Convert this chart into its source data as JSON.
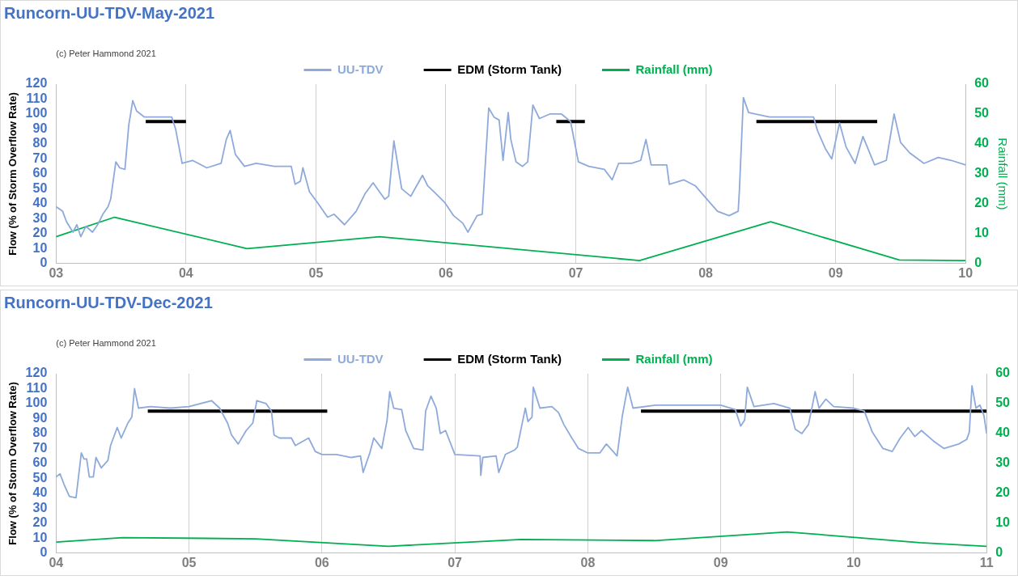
{
  "chart_data": [
    {
      "type": "line",
      "title": "Runcorn-UU-TDV-May-2021",
      "ylabel": "Flow (% of Storm Overflow Rate)",
      "y2label": "Rainfall (mm)",
      "annotations": [
        "(c) Peter Hammond 2021"
      ],
      "legend": "top",
      "grid": "x",
      "marker": "none",
      "line_style": "solid",
      "xlim": [
        3,
        10
      ],
      "xticks": [
        {
          "value": 3,
          "label": "03"
        },
        {
          "value": 4,
          "label": "04"
        },
        {
          "value": 5,
          "label": "05"
        },
        {
          "value": 6,
          "label": "06"
        },
        {
          "value": 7,
          "label": "07"
        },
        {
          "value": 8,
          "label": "08"
        },
        {
          "value": 9,
          "label": "09"
        },
        {
          "value": 10,
          "label": "10"
        }
      ],
      "ylim": [
        0,
        120
      ],
      "yticks": [
        0,
        10,
        20,
        30,
        40,
        50,
        60,
        70,
        80,
        90,
        100,
        110,
        120
      ],
      "y2lim": [
        0,
        60
      ],
      "y2ticks": [
        0,
        10,
        20,
        30,
        40,
        50,
        60
      ],
      "series": [
        {
          "name": "UU-TDV",
          "color": "#8eaadb",
          "x": [
            3.0,
            3.05,
            3.08,
            3.13,
            3.16,
            3.19,
            3.23,
            3.28,
            3.32,
            3.36,
            3.4,
            3.42,
            3.46,
            3.49,
            3.53,
            3.56,
            3.57,
            3.59,
            3.62,
            3.68,
            3.77,
            3.89,
            3.92,
            3.97,
            4.05,
            4.16,
            4.27,
            4.31,
            4.34,
            4.38,
            4.45,
            4.54,
            4.68,
            4.81,
            4.84,
            4.88,
            4.9,
            4.95,
            5.01,
            5.09,
            5.14,
            5.22,
            5.31,
            5.38,
            5.44,
            5.53,
            5.56,
            5.6,
            5.66,
            5.73,
            5.82,
            5.86,
            5.92,
            5.99,
            6.06,
            6.13,
            6.17,
            6.24,
            6.28,
            6.33,
            6.37,
            6.41,
            6.44,
            6.48,
            6.5,
            6.54,
            6.59,
            6.63,
            6.67,
            6.72,
            6.8,
            6.89,
            6.96,
            7.02,
            7.1,
            7.22,
            7.28,
            7.33,
            7.43,
            7.5,
            7.54,
            7.58,
            7.7,
            7.72,
            7.83,
            7.92,
            8.01,
            8.09,
            8.18,
            8.25,
            8.26,
            8.29,
            8.33,
            8.49,
            8.67,
            8.83,
            8.86,
            8.92,
            8.97,
            9.03,
            9.08,
            9.15,
            9.21,
            9.3,
            9.39,
            9.45,
            9.5,
            9.57,
            9.68,
            9.79,
            9.89,
            10.0
          ],
          "values": [
            38,
            35,
            28,
            21,
            26,
            18,
            25,
            21,
            26,
            33,
            38,
            43,
            68,
            64,
            63,
            93,
            98,
            109,
            102,
            98,
            98,
            98,
            90,
            67,
            69,
            64,
            67,
            83,
            89,
            73,
            65,
            67,
            65,
            65,
            53,
            55,
            64,
            48,
            41,
            31,
            33,
            26,
            35,
            47,
            54,
            43,
            45,
            82,
            50,
            45,
            59,
            52,
            47,
            41,
            32,
            27,
            21,
            32,
            33,
            104,
            98,
            96,
            69,
            101,
            83,
            68,
            65,
            68,
            106,
            97,
            100,
            100,
            95,
            68,
            65,
            63,
            56,
            67,
            67,
            69,
            83,
            66,
            66,
            53,
            56,
            52,
            43,
            35,
            32,
            35,
            50,
            111,
            101,
            98,
            98,
            98,
            89,
            77,
            70,
            94,
            78,
            67,
            85,
            66,
            69,
            100,
            81,
            74,
            67,
            71,
            69,
            66
          ]
        },
        {
          "name": "EDM (Storm Tank)",
          "color": "#000000",
          "x": [
            3.69,
            4.0,
            5.0,
            6.85,
            7.07,
            8.0,
            8.39,
            9.32
          ],
          "values": [
            95,
            95,
            null,
            95,
            95,
            null,
            95,
            95
          ]
        },
        {
          "name": "Rainfall (mm)",
          "color": "#00b050",
          "axis": "y2",
          "x": [
            3,
            3.45,
            4.47,
            5.49,
            7.49,
            8.5,
            9.49,
            10
          ],
          "values": [
            9,
            15.5,
            5,
            9,
            1,
            14,
            1.2,
            1
          ]
        }
      ]
    },
    {
      "type": "line",
      "title": "Runcorn-UU-TDV-Dec-2021",
      "ylabel": "Flow (% of Storm Overflow Rate)",
      "annotations": [
        "(c) Peter Hammond 2021"
      ],
      "legend": "top",
      "grid": "x",
      "marker": "none",
      "line_style": "solid",
      "xlim": [
        4,
        11
      ],
      "xticks": [
        {
          "value": 4,
          "label": "04"
        },
        {
          "value": 5,
          "label": "05"
        },
        {
          "value": 6,
          "label": "06"
        },
        {
          "value": 7,
          "label": "07"
        },
        {
          "value": 8,
          "label": "08"
        },
        {
          "value": 9,
          "label": "09"
        },
        {
          "value": 10,
          "label": "10"
        },
        {
          "value": 11,
          "label": "11"
        }
      ],
      "ylim": [
        0,
        120
      ],
      "yticks": [
        0,
        10,
        20,
        30,
        40,
        50,
        60,
        70,
        80,
        90,
        100,
        110,
        120
      ],
      "y2lim": [
        0,
        60
      ],
      "y2ticks": [
        0,
        10,
        20,
        30,
        40,
        50,
        60
      ],
      "series": [
        {
          "name": "UU-TDV",
          "color": "#8eaadb",
          "x": [
            4.0,
            4.03,
            4.06,
            4.1,
            4.15,
            4.19,
            4.21,
            4.23,
            4.25,
            4.28,
            4.3,
            4.34,
            4.39,
            4.41,
            4.46,
            4.49,
            4.54,
            4.57,
            4.59,
            4.62,
            4.71,
            4.86,
            5.0,
            5.17,
            5.23,
            5.29,
            5.32,
            5.37,
            5.43,
            5.48,
            5.51,
            5.58,
            5.62,
            5.64,
            5.68,
            5.77,
            5.8,
            5.9,
            5.95,
            6.0,
            6.11,
            6.22,
            6.29,
            6.31,
            6.36,
            6.39,
            6.45,
            6.49,
            6.51,
            6.54,
            6.6,
            6.63,
            6.69,
            6.76,
            6.78,
            6.82,
            6.86,
            6.89,
            6.93,
            7.0,
            7.19,
            7.195,
            7.21,
            7.31,
            7.33,
            7.38,
            7.45,
            7.47,
            7.53,
            7.55,
            7.58,
            7.59,
            7.64,
            7.73,
            7.78,
            7.82,
            7.88,
            7.93,
            8.0,
            8.09,
            8.14,
            8.22,
            8.26,
            8.3,
            8.34,
            8.51,
            8.74,
            9.0,
            9.11,
            9.15,
            9.18,
            9.2,
            9.25,
            9.4,
            9.52,
            9.56,
            9.61,
            9.66,
            9.69,
            9.71,
            9.74,
            9.79,
            9.85,
            10.0,
            10.08,
            10.14,
            10.22,
            10.29,
            10.35,
            10.41,
            10.46,
            10.51,
            10.6,
            10.68,
            10.79,
            10.85,
            10.87,
            10.89,
            10.92,
            10.95,
            10.98,
            11.0
          ],
          "values": [
            51,
            53,
            46,
            38,
            37,
            67,
            63,
            63,
            51,
            51,
            64,
            57,
            62,
            72,
            84,
            77,
            87,
            91,
            110,
            97,
            98,
            97,
            98,
            102,
            97,
            87,
            79,
            73,
            82,
            87,
            102,
            100,
            95,
            79,
            77,
            77,
            72,
            77,
            68,
            66,
            66,
            64,
            65,
            54,
            67,
            77,
            70,
            89,
            108,
            97,
            96,
            82,
            70,
            69,
            95,
            105,
            97,
            80,
            82,
            66,
            65,
            52,
            64,
            65,
            54,
            66,
            69,
            71,
            97,
            88,
            91,
            111,
            97,
            98,
            94,
            86,
            77,
            70,
            67,
            67,
            73,
            65,
            92,
            111,
            97,
            99,
            99,
            99,
            96,
            85,
            89,
            111,
            98,
            100,
            97,
            83,
            80,
            86,
            99,
            108,
            97,
            103,
            98,
            97,
            95,
            81,
            70,
            68,
            77,
            84,
            78,
            82,
            75,
            70,
            73,
            76,
            81,
            112,
            97,
            99,
            92,
            80
          ]
        },
        {
          "name": "EDM (Storm Tank)",
          "color": "#000000",
          "x": [
            4.69,
            6.04,
            7.0,
            8.4,
            11.0
          ],
          "values": [
            95,
            95,
            null,
            95,
            95
          ]
        },
        {
          "name": "Rainfall (mm)",
          "color": "#00b050",
          "axis": "y2",
          "x": [
            4,
            4.5,
            5.5,
            6.5,
            7.5,
            8.5,
            9.5,
            10.5,
            11
          ],
          "values": [
            3.7,
            5.2,
            4.8,
            2.3,
            4.6,
            4.2,
            7.1,
            3.5,
            2.3
          ]
        }
      ]
    }
  ]
}
